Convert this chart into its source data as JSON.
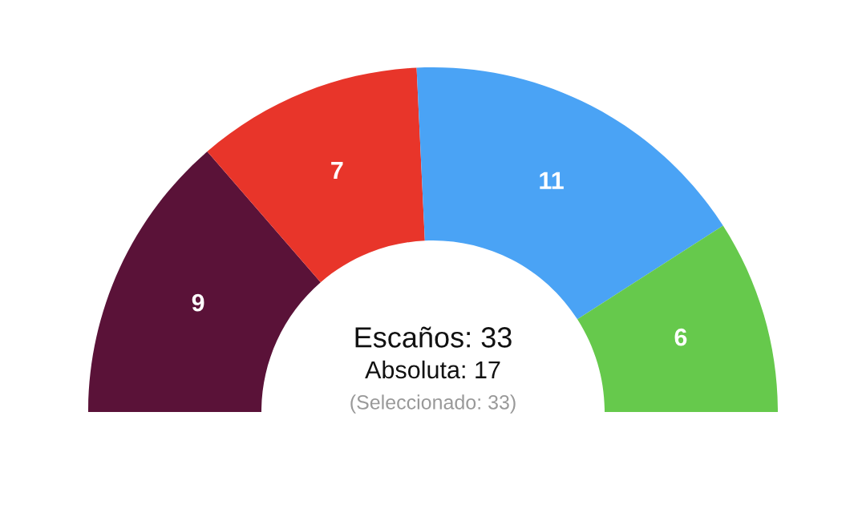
{
  "chart_data": {
    "type": "donut",
    "categories": [
      null,
      null,
      null,
      null
    ],
    "values": [
      9,
      7,
      11,
      6
    ],
    "colors": [
      "#5a1238",
      "#e8352a",
      "#4aa3f5",
      "#66c94c"
    ],
    "data_labels": true,
    "annotations": [
      "Escaños: 33",
      "Absoluta: 17",
      "(Seleccionado: 33)"
    ]
  }
}
